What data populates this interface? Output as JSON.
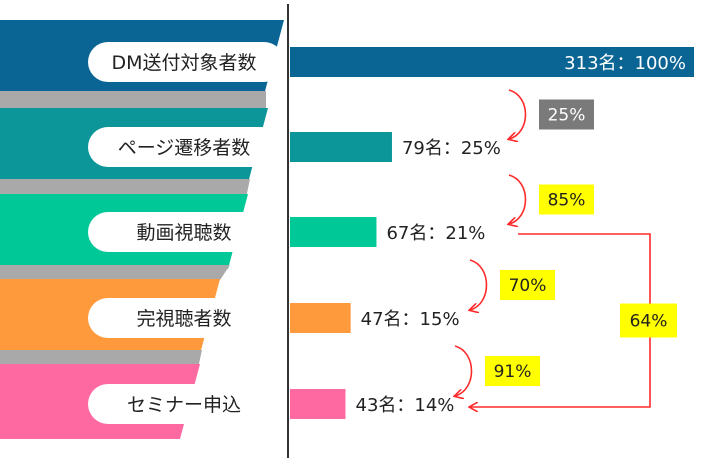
{
  "chart_data": {
    "type": "bar",
    "orientation": "horizontal",
    "categories": [
      "DM送付対象者数",
      "ページ遷移者数",
      "動画視聴数",
      "完視聴者数",
      "セミナー申込"
    ],
    "values": [
      313,
      79,
      67,
      47,
      43
    ],
    "value_labels": [
      "313名：100%",
      "79名：25%",
      "67名：21%",
      "47名：15%",
      "43名：14%"
    ],
    "xlim": [
      0,
      313
    ],
    "colors": [
      "#0a6595",
      "#0c9699",
      "#00c897",
      "#ff9a3c",
      "#ff69a2"
    ],
    "conversion_labels": [
      {
        "text": "25%",
        "from": 0,
        "to": 1,
        "bg": "#7a7a7a",
        "fg": "#ffffff"
      },
      {
        "text": "85%",
        "from": 1,
        "to": 2,
        "bg": "#ffff00",
        "fg": "#222222"
      },
      {
        "text": "70%",
        "from": 2,
        "to": 3,
        "bg": "#ffff00",
        "fg": "#222222"
      },
      {
        "text": "91%",
        "from": 3,
        "to": 4,
        "bg": "#ffff00",
        "fg": "#222222"
      }
    ],
    "overall_conversion": {
      "text": "64%",
      "from": 2,
      "to": 4,
      "bg": "#ffff00",
      "fg": "#222222"
    },
    "arrow_color": "#ff2a2a",
    "separator_color": "#a9a9a9",
    "grid": false,
    "legend": "none"
  }
}
